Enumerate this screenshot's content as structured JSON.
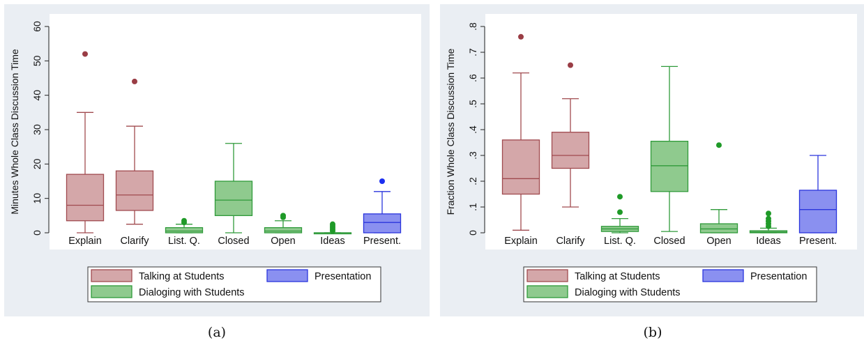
{
  "colors": {
    "panel_bg": "#eaeef3",
    "plot_bg": "#ffffff",
    "talking_fill": "#d4a7a9",
    "talking_stroke": "#a04a4f",
    "dialog_fill": "#8fca8e",
    "dialog_stroke": "#2f9a3a",
    "present_fill": "#8a90f0",
    "present_stroke": "#2a35dd",
    "talking_outlier": "#9a3d45",
    "dialog_outlier": "#1f9a28",
    "present_outlier": "#1c2ff0"
  },
  "captions": {
    "a": "(a)",
    "b": "(b)"
  },
  "chart_data": [
    {
      "type": "box",
      "panel": "a",
      "ylabel": "Minutes Whole Class Discussion Time",
      "ylim": [
        0,
        60
      ],
      "yticks": [
        0,
        10,
        20,
        30,
        40,
        50,
        60
      ],
      "ytick_labels": [
        "0",
        "10",
        "20",
        "30",
        "40",
        "50",
        "60"
      ],
      "grid": false,
      "legend": {
        "placement": "bottom",
        "entries": [
          {
            "label": "Talking at Students",
            "group": "talking"
          },
          {
            "label": "Presentation",
            "group": "present"
          },
          {
            "label": "Dialoging with Students",
            "group": "dialog"
          }
        ]
      },
      "categories": [
        "Explain",
        "Clarify",
        "List. Q.",
        "Closed",
        "Open",
        "Ideas",
        "Present."
      ],
      "boxes": [
        {
          "category": "Explain",
          "group": "talking",
          "whisker_low": 0,
          "q1": 3.5,
          "median": 8,
          "q3": 17,
          "whisker_high": 35,
          "outliers": [
            52
          ]
        },
        {
          "category": "Clarify",
          "group": "talking",
          "whisker_low": 2.5,
          "q1": 6.5,
          "median": 11,
          "q3": 18,
          "whisker_high": 31,
          "outliers": [
            44
          ]
        },
        {
          "category": "List. Q.",
          "group": "dialog",
          "whisker_low": 0,
          "q1": 0,
          "median": 0.5,
          "q3": 1.5,
          "whisker_high": 2.5,
          "outliers": [
            3,
            3.5
          ]
        },
        {
          "category": "Closed",
          "group": "dialog",
          "whisker_low": 0,
          "q1": 5,
          "median": 9.5,
          "q3": 15,
          "whisker_high": 26,
          "outliers": []
        },
        {
          "category": "Open",
          "group": "dialog",
          "whisker_low": 0,
          "q1": 0,
          "median": 0.5,
          "q3": 1.5,
          "whisker_high": 3.5,
          "outliers": [
            4.5,
            5
          ]
        },
        {
          "category": "Ideas",
          "group": "dialog",
          "whisker_low": 0,
          "q1": 0,
          "median": 0,
          "q3": 0,
          "whisker_high": 0,
          "outliers": [
            0.5,
            1,
            1.5,
            2,
            2.5
          ]
        },
        {
          "category": "Present.",
          "group": "present",
          "whisker_low": 0,
          "q1": 0,
          "median": 3,
          "q3": 5.5,
          "whisker_high": 12,
          "outliers": [
            15
          ]
        }
      ]
    },
    {
      "type": "box",
      "panel": "b",
      "ylabel": "Fraction Whole Class Discussion Time",
      "ylim": [
        0,
        0.8
      ],
      "yticks": [
        0,
        0.1,
        0.2,
        0.3,
        0.4,
        0.5,
        0.6,
        0.7,
        0.8
      ],
      "ytick_labels": [
        "0",
        ".1",
        ".2",
        ".3",
        ".4",
        ".5",
        ".6",
        ".7",
        ".8"
      ],
      "grid": false,
      "legend": {
        "placement": "bottom",
        "entries": [
          {
            "label": "Talking at Students",
            "group": "talking"
          },
          {
            "label": "Presentation",
            "group": "present"
          },
          {
            "label": "Dialoging with Students",
            "group": "dialog"
          }
        ]
      },
      "categories": [
        "Explain",
        "Clarify",
        "List. Q.",
        "Closed",
        "Open",
        "Ideas",
        "Present."
      ],
      "boxes": [
        {
          "category": "Explain",
          "group": "talking",
          "whisker_low": 0.01,
          "q1": 0.15,
          "median": 0.21,
          "q3": 0.36,
          "whisker_high": 0.62,
          "outliers": [
            0.76
          ]
        },
        {
          "category": "Clarify",
          "group": "talking",
          "whisker_low": 0.1,
          "q1": 0.25,
          "median": 0.3,
          "q3": 0.39,
          "whisker_high": 0.52,
          "outliers": [
            0.65
          ]
        },
        {
          "category": "List. Q.",
          "group": "dialog",
          "whisker_low": 0,
          "q1": 0.005,
          "median": 0.015,
          "q3": 0.025,
          "whisker_high": 0.055,
          "outliers": [
            0.08,
            0.14
          ]
        },
        {
          "category": "Closed",
          "group": "dialog",
          "whisker_low": 0.005,
          "q1": 0.16,
          "median": 0.26,
          "q3": 0.355,
          "whisker_high": 0.645,
          "outliers": []
        },
        {
          "category": "Open",
          "group": "dialog",
          "whisker_low": 0,
          "q1": 0,
          "median": 0.015,
          "q3": 0.035,
          "whisker_high": 0.09,
          "outliers": [
            0.34
          ]
        },
        {
          "category": "Ideas",
          "group": "dialog",
          "whisker_low": 0,
          "q1": 0,
          "median": 0.003,
          "q3": 0.008,
          "whisker_high": 0.018,
          "outliers": [
            0.025,
            0.035,
            0.045,
            0.055,
            0.075
          ]
        },
        {
          "category": "Present.",
          "group": "present",
          "whisker_low": 0,
          "q1": 0,
          "median": 0.09,
          "q3": 0.165,
          "whisker_high": 0.3,
          "outliers": []
        }
      ]
    }
  ]
}
